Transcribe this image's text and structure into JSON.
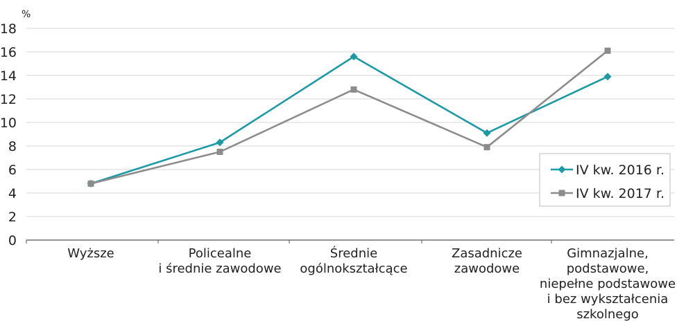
{
  "chart_data": {
    "type": "line",
    "ylabel": "%",
    "ylim": [
      0,
      18
    ],
    "yticks": [
      0,
      2,
      4,
      6,
      8,
      10,
      12,
      14,
      16,
      18
    ],
    "grid": true,
    "legend_position": "right",
    "categories": [
      [
        "Wyższe"
      ],
      [
        "Policealne",
        "i średnie zawodowe"
      ],
      [
        "Średnie",
        "ogólnokształcące"
      ],
      [
        "Zasadnicze",
        "zawodowe"
      ],
      [
        "Gimnazjalne,",
        "podstawowe,",
        "niepełne podstawowe",
        "i bez wykształcenia",
        "szkolnego"
      ]
    ],
    "series": [
      {
        "name": "IV kw. 2016 r.",
        "color": "#1b9aa6",
        "marker": "diamond",
        "values": [
          4.8,
          8.3,
          15.6,
          9.1,
          13.9
        ]
      },
      {
        "name": "IV kw. 2017 r.",
        "color": "#8c8c8c",
        "marker": "square",
        "values": [
          4.8,
          7.5,
          12.8,
          7.9,
          16.1
        ]
      }
    ]
  }
}
